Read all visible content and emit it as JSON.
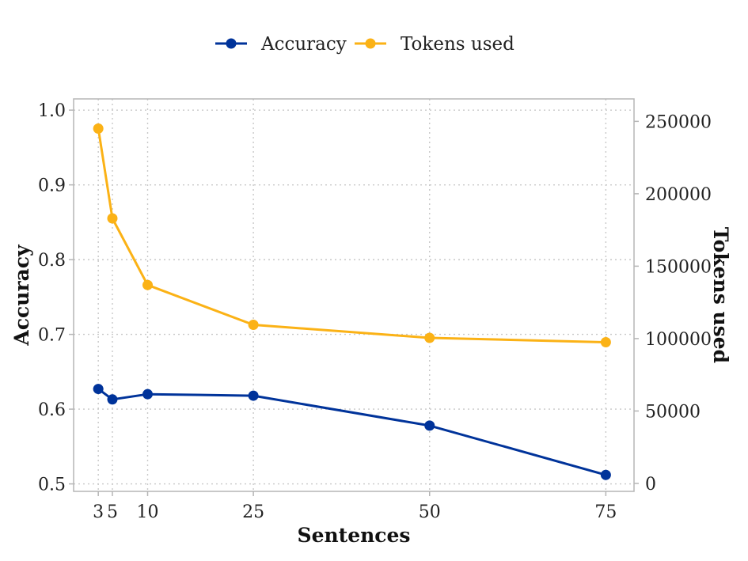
{
  "chart_data": {
    "type": "line",
    "x": [
      3,
      5,
      10,
      25,
      50,
      75
    ],
    "xlabel": "Sentences",
    "xlim": [
      -0.5,
      79
    ],
    "x_ticks": [
      3,
      5,
      10,
      25,
      50,
      75
    ],
    "ylabel_left": "Accuracy",
    "ylim_left": [
      0.49,
      1.015
    ],
    "yticks_left": [
      "0.5",
      "0.6",
      "0.7",
      "0.8",
      "0.9",
      "1.0"
    ],
    "ylabel_right": "Tokens used",
    "ylim_right": [
      -5500,
      265500
    ],
    "yticks_right": [
      "0",
      "50000",
      "100000",
      "150000",
      "200000",
      "250000"
    ],
    "grid": true,
    "legend_position": "top-center",
    "series": [
      {
        "name": "Accuracy",
        "axis": "left",
        "color": "#00339a",
        "values": [
          0.627,
          0.613,
          0.62,
          0.618,
          0.578,
          0.512
        ]
      },
      {
        "name": "Tokens used",
        "axis": "right",
        "color": "#fbb216",
        "values": [
          245000,
          183000,
          137000,
          109500,
          100500,
          97500
        ]
      }
    ]
  }
}
